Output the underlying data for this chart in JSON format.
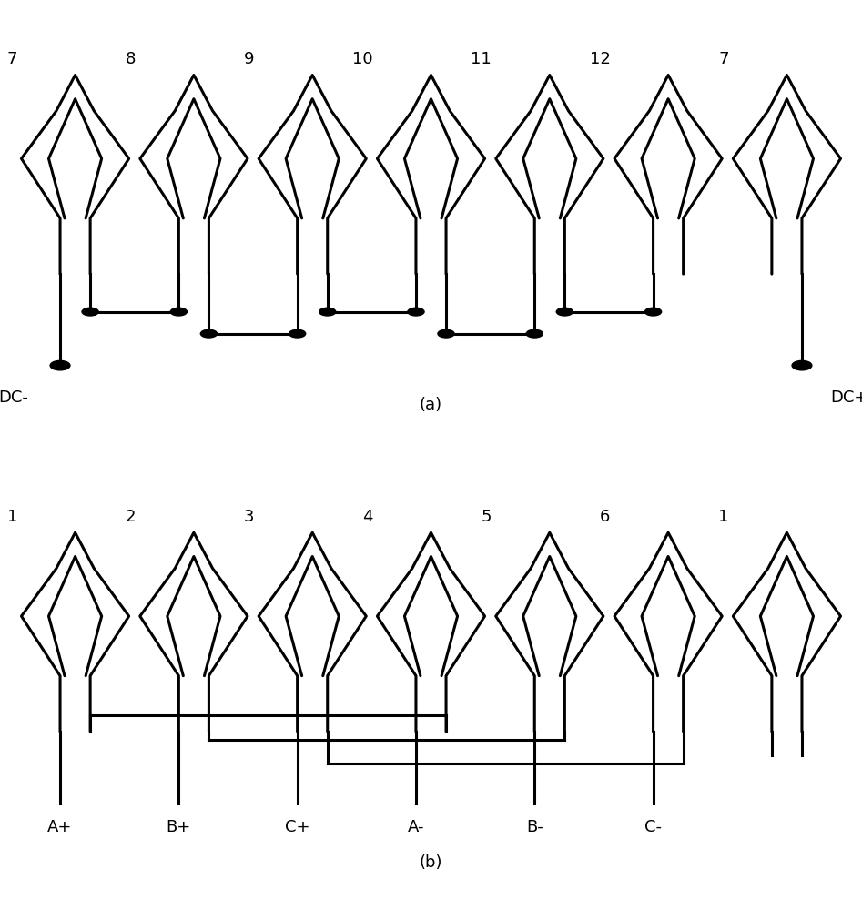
{
  "bg_color": "#ffffff",
  "line_color": "#000000",
  "line_width": 2.2,
  "fig_width": 9.47,
  "fig_height": 10.0,
  "diagram_a": {
    "label": "(a)",
    "slots": [
      7,
      8,
      9,
      10,
      11,
      12,
      7
    ],
    "dc_minus_label": "DC-",
    "dc_plus_label": "DC+"
  },
  "diagram_b": {
    "label": "(b)",
    "slots": [
      1,
      2,
      3,
      4,
      5,
      6,
      1
    ],
    "terminal_labels": [
      "A+",
      "B+",
      "C+",
      "A-",
      "B-",
      "C-"
    ]
  }
}
